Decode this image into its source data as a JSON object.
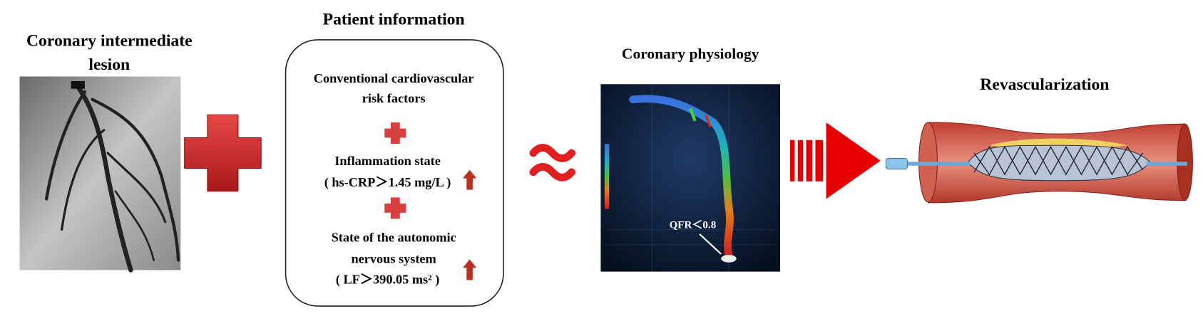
{
  "left_panel": {
    "title_lines": [
      "Coronary intermediate",
      "lesion"
    ]
  },
  "patient_info": {
    "title": "Patient information",
    "items": [
      {
        "lines": [
          "Conventional cardiovascular",
          "risk factors"
        ]
      },
      {
        "lines": [
          "Inflammation state",
          "( hs-CRP＞1.45 mg/L )"
        ]
      },
      {
        "lines": [
          "State of the autonomic",
          "nervous system",
          "( LF＞390.05  ms² )"
        ]
      }
    ]
  },
  "physiology_panel": {
    "title": "Coronary physiology",
    "annotation": "QFR＜0.8"
  },
  "right_panel": {
    "title": "Revascularization"
  }
}
